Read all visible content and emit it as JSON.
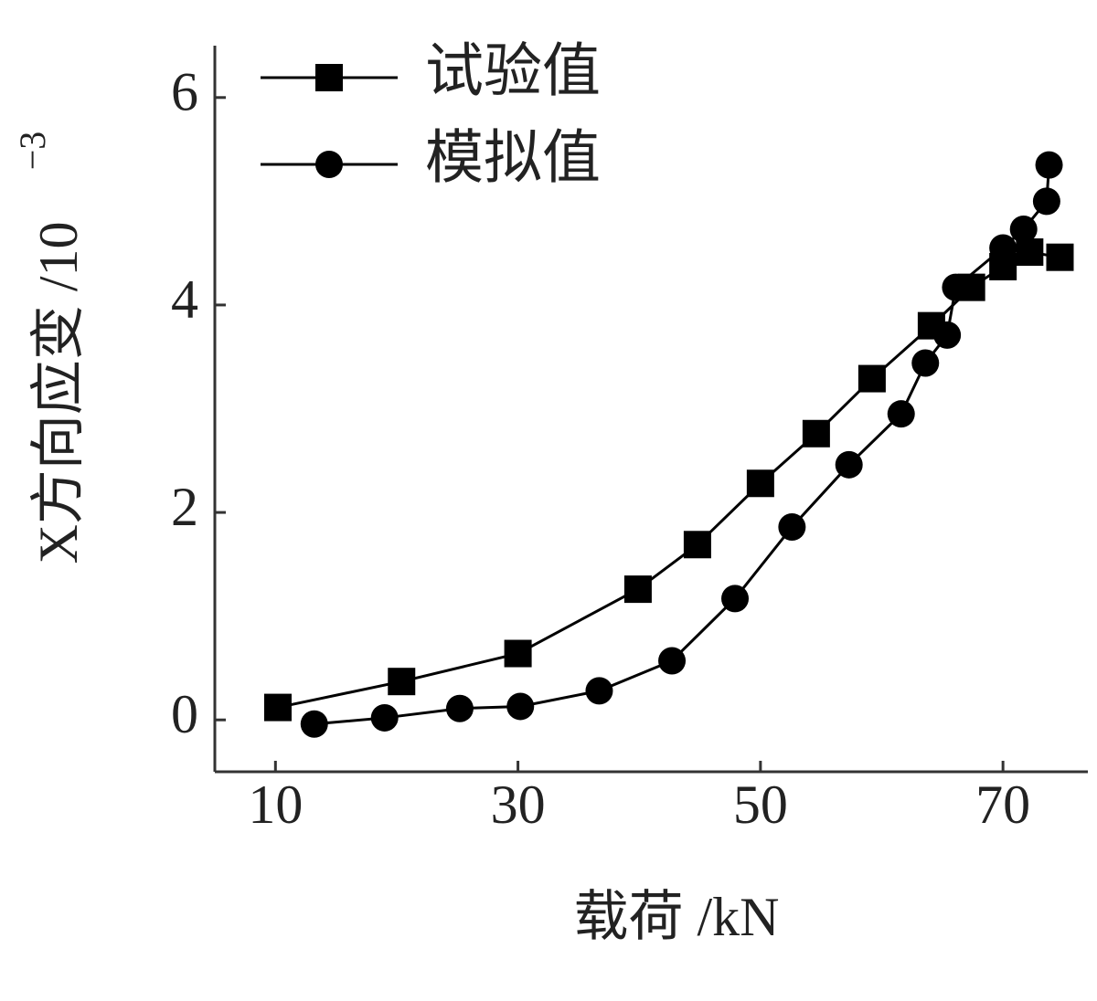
{
  "chart_data": {
    "type": "line",
    "x_label": "载荷 /kN",
    "y_label": "X方向应变 /10",
    "y_label_exponent": "−3",
    "xlim": [
      5,
      77
    ],
    "xticks": [
      10,
      30,
      50,
      70
    ],
    "ylim": [
      -0.5,
      6.5
    ],
    "yticks": [
      0,
      2,
      4,
      6
    ],
    "legend": "upper left",
    "series": [
      {
        "name": "试验值",
        "color": "#000000",
        "marker": "square",
        "x": [
          10.2,
          20.4,
          30.0,
          39.9,
          44.8,
          50.0,
          54.6,
          59.2,
          64.1,
          67.4,
          70.0,
          72.2,
          74.7
        ],
        "values": [
          0.12,
          0.37,
          0.64,
          1.26,
          1.69,
          2.28,
          2.76,
          3.29,
          3.8,
          4.17,
          4.37,
          4.51,
          4.46
        ]
      },
      {
        "name": "模拟值",
        "color": "#000000",
        "marker": "circle",
        "x": [
          13.2,
          19.0,
          25.2,
          30.2,
          36.7,
          42.7,
          47.9,
          52.6,
          57.3,
          61.6,
          63.6,
          65.4,
          66.1,
          70.0,
          71.7,
          73.6,
          73.8
        ],
        "values": [
          -0.04,
          0.02,
          0.11,
          0.13,
          0.28,
          0.57,
          1.17,
          1.86,
          2.46,
          2.95,
          3.44,
          3.71,
          4.17,
          4.55,
          4.73,
          5.0,
          5.35
        ]
      }
    ]
  }
}
